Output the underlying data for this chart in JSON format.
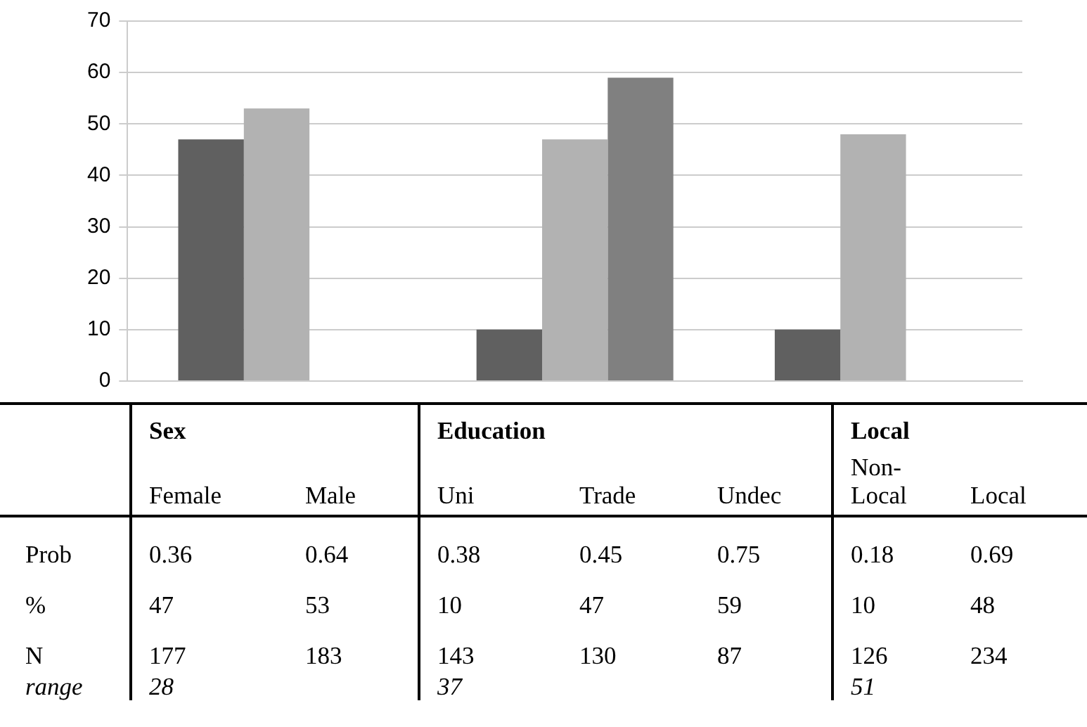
{
  "chart_data": [
    {
      "type": "bar",
      "categories": [
        null,
        null,
        null
      ],
      "series": [
        {
          "color": "#606060",
          "values": [
            47,
            10,
            10
          ]
        },
        {
          "color": "#b2b2b2",
          "values": [
            53,
            47,
            48
          ]
        },
        {
          "color": "#808080",
          "values": [
            null,
            59,
            null
          ]
        }
      ],
      "ylim": [
        0,
        70
      ],
      "yticks": [
        0,
        10,
        20,
        30,
        40,
        50,
        60,
        70
      ],
      "grid": "y",
      "legend": false,
      "tick_labels": "y"
    },
    {
      "type": "heatmap",
      "categories": [
        "Female",
        "Male",
        "Uni",
        "Trade",
        "Undec",
        "Non-Local",
        "Local"
      ],
      "y_categories": [
        "Prob",
        "%",
        "N",
        "range"
      ],
      "cells": [
        [
          0.36,
          0.64,
          0.38,
          0.45,
          0.75,
          0.18,
          0.69
        ],
        [
          47,
          53,
          10,
          47,
          59,
          10,
          48
        ],
        [
          177,
          183,
          143,
          130,
          87,
          126,
          234
        ],
        [
          28,
          null,
          37,
          null,
          null,
          51,
          null
        ]
      ],
      "data_labels": true,
      "annotations": [
        "Sex",
        "Education",
        "Local"
      ]
    }
  ]
}
